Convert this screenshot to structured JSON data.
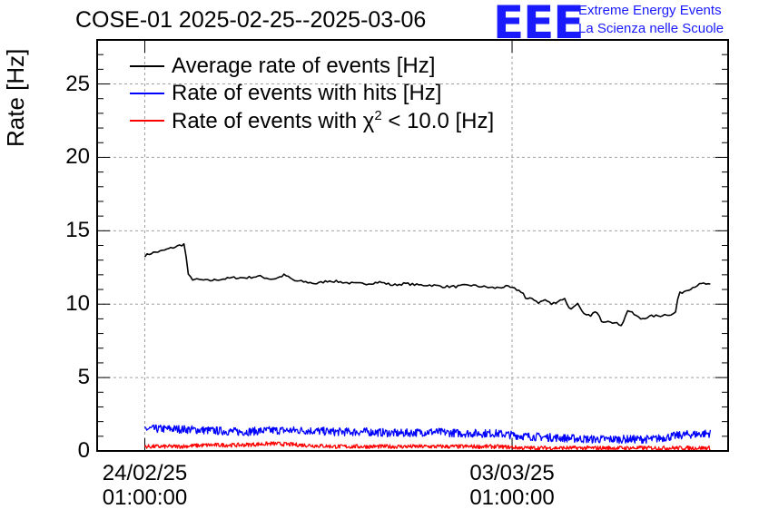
{
  "chart_data": {
    "type": "line",
    "title": "COSE-01 2025-02-25--2025-03-06",
    "xlabel": "",
    "ylabel": "Rate [Hz]",
    "ylim": [
      0,
      28
    ],
    "yticks": [
      0,
      5,
      10,
      15,
      20,
      25
    ],
    "ytick_labels": [
      "0",
      "5",
      "10",
      "15",
      "20",
      "25"
    ],
    "xlim_days": [
      -0.75,
      9.18
    ],
    "xticks": [
      {
        "day": 0,
        "date": "24/02/25",
        "time": "01:00:00"
      },
      {
        "day": 5.78,
        "date": "03/03/25",
        "time": "01:00:00"
      }
    ],
    "grid": true,
    "legend_position": "top-left",
    "series": [
      {
        "name": "Average rate of events [Hz]",
        "color": "#000000",
        "x": [
          0.0,
          0.12,
          0.25,
          0.4,
          0.48,
          0.55,
          0.63,
          0.68,
          0.75,
          1.0,
          1.2,
          1.4,
          1.6,
          1.8,
          2.0,
          2.1,
          2.2,
          2.35,
          2.55,
          2.7,
          2.9,
          3.1,
          3.3,
          3.5,
          3.7,
          3.9,
          4.1,
          4.3,
          4.5,
          4.7,
          4.9,
          5.1,
          5.3,
          5.5,
          5.7,
          5.85,
          5.95,
          6.0,
          6.1,
          6.2,
          6.3,
          6.4,
          6.5,
          6.6,
          6.7,
          6.8,
          6.9,
          7.0,
          7.1,
          7.2,
          7.3,
          7.4,
          7.5,
          7.55,
          7.6,
          7.8,
          8.0,
          8.1,
          8.2,
          8.3,
          8.35,
          8.4,
          8.5,
          8.6,
          8.7,
          8.8,
          8.9
        ],
        "values": [
          13.3,
          13.5,
          13.6,
          13.8,
          13.9,
          14.0,
          14.1,
          12.0,
          11.7,
          11.6,
          11.7,
          11.8,
          11.8,
          11.9,
          11.7,
          11.8,
          12.0,
          11.6,
          11.5,
          11.4,
          11.6,
          11.5,
          11.4,
          11.4,
          11.5,
          11.3,
          11.4,
          11.3,
          11.3,
          11.2,
          11.2,
          11.3,
          11.2,
          11.1,
          11.2,
          11.0,
          10.8,
          10.3,
          10.4,
          10.1,
          10.3,
          10.0,
          10.2,
          10.4,
          9.6,
          10.1,
          9.3,
          9.2,
          9.5,
          8.8,
          8.9,
          8.7,
          8.6,
          9.0,
          9.6,
          9.0,
          9.2,
          9.2,
          9.3,
          9.3,
          9.4,
          10.7,
          10.9,
          11.1,
          11.3,
          11.4,
          11.3
        ]
      },
      {
        "name": "Rate of events with hits [Hz]",
        "color": "#0000ff",
        "x": [
          0.0,
          0.5,
          1.0,
          1.5,
          2.0,
          2.5,
          3.0,
          3.5,
          4.0,
          4.5,
          5.0,
          5.5,
          6.0,
          6.5,
          7.0,
          7.5,
          8.0,
          8.3,
          8.5,
          8.9
        ],
        "values": [
          1.5,
          1.5,
          1.4,
          1.3,
          1.4,
          1.4,
          1.3,
          1.3,
          1.2,
          1.3,
          1.2,
          1.2,
          1.0,
          0.9,
          0.8,
          0.8,
          0.8,
          1.0,
          1.1,
          1.2
        ]
      },
      {
        "name": "Rate of events with χ² < 10.0 [Hz]",
        "color": "#ff0000",
        "x": [
          0.0,
          0.5,
          1.0,
          1.5,
          2.0,
          2.5,
          3.0,
          3.5,
          4.0,
          4.5,
          5.0,
          5.5,
          6.0,
          6.5,
          7.0,
          7.5,
          8.0,
          8.5,
          8.9
        ],
        "values": [
          0.3,
          0.3,
          0.4,
          0.4,
          0.5,
          0.4,
          0.3,
          0.3,
          0.3,
          0.3,
          0.3,
          0.3,
          0.2,
          0.2,
          0.2,
          0.2,
          0.2,
          0.2,
          0.2
        ]
      }
    ]
  },
  "legend_labels": {
    "avg": "Average rate of events [Hz]",
    "hits": "Rate of events with hits [Hz]",
    "chi_prefix": "Rate of events with ",
    "chi_symbol": "χ",
    "chi_sup": "2",
    "chi_suffix": " < 10.0 [Hz]"
  },
  "logo": {
    "mark": "EEE",
    "line1": "Extreme Energy Events",
    "line2": "La Scienza nelle Scuole"
  }
}
